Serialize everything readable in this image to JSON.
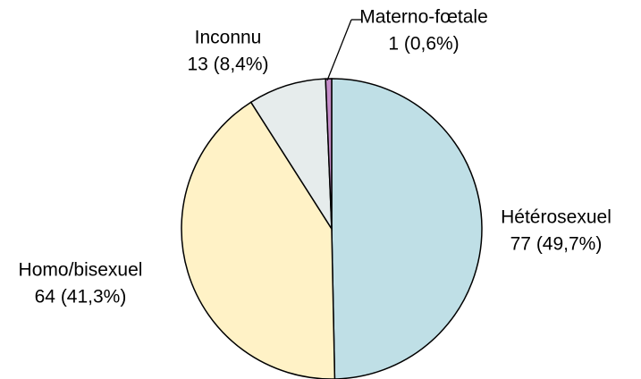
{
  "chart_data": {
    "type": "pie",
    "categories": [
      "Hétérosexuel",
      "Homo/bisexuel",
      "Inconnu",
      "Materno-fœtale"
    ],
    "values": [
      77,
      64,
      13,
      1
    ],
    "value_labels": [
      "77 (49,7%)",
      "64 (41,3%)",
      "13 (8,4%)",
      "1 (0,6%)"
    ],
    "colors": [
      "#bfdfe6",
      "#fff2c6",
      "#e6ecec",
      "#c48cc8"
    ]
  }
}
